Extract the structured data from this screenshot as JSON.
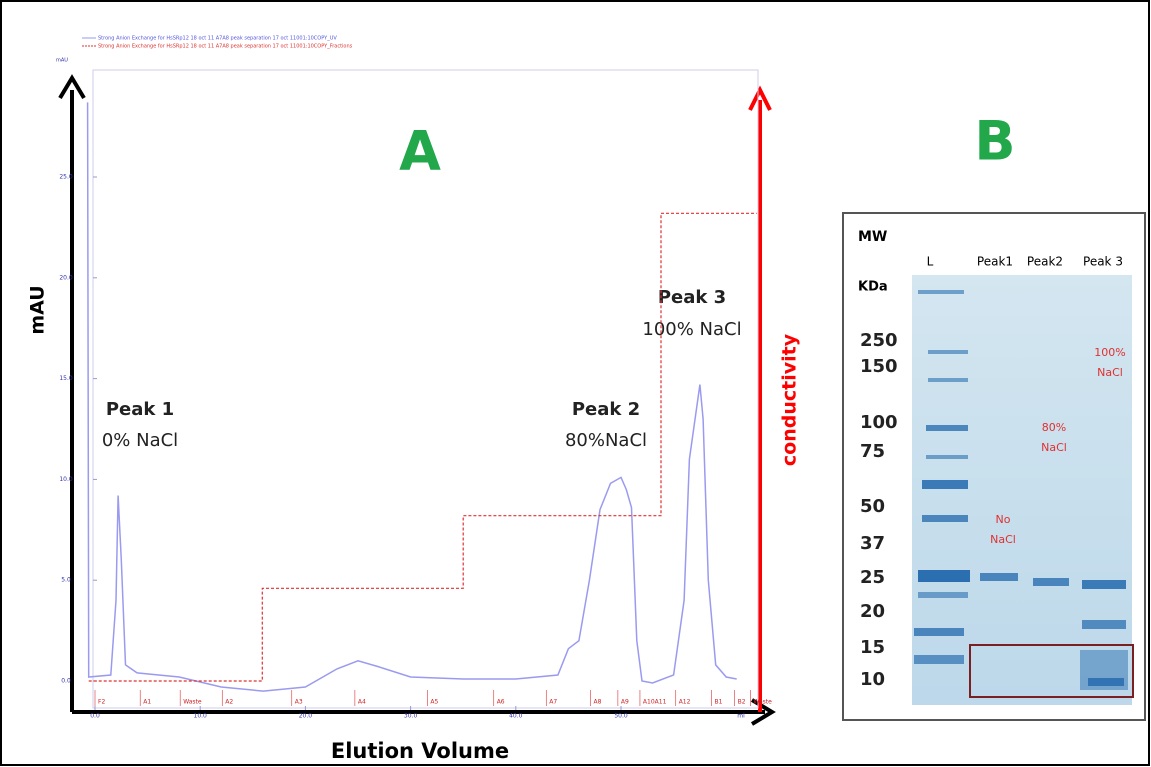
{
  "chart_data": {
    "type": "line",
    "panel_label": "A",
    "xlabel": "Elution Volume",
    "ylabel": "mAU",
    "y_unit": "mAU",
    "x_unit": "ml",
    "y2label": "conductivity",
    "xlim": [
      -1.5,
      63
    ],
    "ylim": [
      -1.5,
      30
    ],
    "xticks": [
      {
        "value": 0,
        "label": "0.0"
      },
      {
        "value": 10,
        "label": "10.0"
      },
      {
        "value": 20,
        "label": "20.0"
      },
      {
        "value": 30,
        "label": "30.0"
      },
      {
        "value": 40,
        "label": "40.0"
      },
      {
        "value": 50,
        "label": "50.0"
      }
    ],
    "yticks": [
      {
        "value": 0,
        "label": "0.0"
      },
      {
        "value": 5,
        "label": "5.0"
      },
      {
        "value": 10,
        "label": "10.0"
      },
      {
        "value": 15,
        "label": "15.0"
      },
      {
        "value": 20,
        "label": "20.0"
      },
      {
        "value": 25,
        "label": "25.0"
      }
    ],
    "series": [
      {
        "name": "Strong Anion Exchange for HsSRp12 18 oct 11 A7A8 peak separation 17 oct 11001:10COPY_UV",
        "color": "#9a9af0",
        "x": [
          -0.7,
          -0.6,
          1.5,
          2.0,
          2.2,
          2.5,
          2.9,
          4,
          8,
          12,
          16,
          20,
          23,
          25,
          27,
          30,
          35,
          40,
          44,
          45,
          46,
          47,
          48,
          49,
          50,
          50.5,
          51,
          51.5,
          52,
          53,
          55,
          56,
          56.5,
          57.5,
          57.8,
          58.3,
          59,
          60,
          61
        ],
        "values": [
          28.7,
          0.2,
          0.3,
          4,
          9.2,
          6,
          0.8,
          0.4,
          0.2,
          -0.3,
          -0.5,
          -0.3,
          0.6,
          1.0,
          0.7,
          0.2,
          0.1,
          0.1,
          0.3,
          1.6,
          2,
          5,
          8.5,
          9.8,
          10.1,
          9.5,
          8.6,
          2,
          0,
          -0.1,
          0.3,
          4,
          11,
          14.7,
          13,
          5,
          0.8,
          0.2,
          0.1
        ]
      },
      {
        "name": "Strong Anion Exchange for HsSRp12 18 oct 11 A7A8 peak separation 17 oct 11001:10COPY_Fractions",
        "color": "#e03030",
        "x": [
          -0.6,
          15.9,
          15.9,
          35,
          35,
          53.8,
          53.8,
          62.9
        ],
        "values": [
          0,
          0,
          4.6,
          4.6,
          8.2,
          8.2,
          23.2,
          23.2
        ]
      }
    ],
    "fractions": {
      "labels": [
        "F2",
        "A1",
        "Waste",
        "A2",
        "A3",
        "A4",
        "A5",
        "A6",
        "A7",
        "A8",
        "A9",
        "A10A11",
        "A12",
        "B1",
        "B2",
        "Waste"
      ],
      "x": [
        0,
        4.3,
        8.1,
        12.1,
        18.7,
        24.7,
        31.6,
        37.9,
        42.9,
        47.1,
        49.7,
        51.8,
        55.2,
        58.6,
        60.8,
        62.3
      ]
    },
    "annotations": [
      {
        "title": "Peak 1",
        "text": "0% NaCl"
      },
      {
        "title": "Peak 2",
        "text": "80%NaCl"
      },
      {
        "title": "Peak 3",
        "text": "100% NaCl"
      }
    ]
  },
  "gel": {
    "panel_label": "B",
    "mw": "MW",
    "unit": "KDa",
    "lanes": [
      "L",
      "Peak1",
      "Peak2",
      "Peak 3"
    ],
    "markers": [
      250,
      150,
      100,
      75,
      50,
      37,
      25,
      20,
      15,
      10
    ],
    "notes": [
      [
        "No",
        "NaCl"
      ],
      [
        "80%",
        "NaCl"
      ],
      [
        "100%",
        "NaCl"
      ]
    ]
  }
}
